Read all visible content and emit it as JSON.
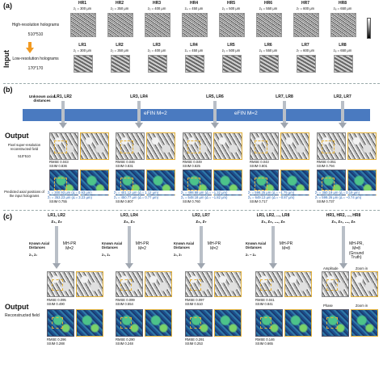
{
  "panel_a": {
    "label": "(a)",
    "side_label": "Input",
    "hr_caption": "High-resolution holograms",
    "hr_size": "510*510",
    "lr_caption": "Low-resolution holograms",
    "lr_size": "170*170",
    "hr": [
      {
        "name": "HR1",
        "z": "z₁ = 300 μm"
      },
      {
        "name": "HR2",
        "z": "z₂ = 350 μm"
      },
      {
        "name": "HR3",
        "z": "z₃ = 400 μm"
      },
      {
        "name": "HR4",
        "z": "z₄ = 450 μm"
      },
      {
        "name": "HR5",
        "z": "z₅ = 500 μm"
      },
      {
        "name": "HR6",
        "z": "z₆ = 550 μm"
      },
      {
        "name": "HR7",
        "z": "z₇ = 600 μm"
      },
      {
        "name": "HR8",
        "z": "z₈ = 650 μm"
      }
    ],
    "lr": [
      {
        "name": "LR1",
        "z": "z₁ = 300 μm"
      },
      {
        "name": "LR2",
        "z": "z₂ = 350 μm"
      },
      {
        "name": "LR3",
        "z": "z₃ = 400 μm"
      },
      {
        "name": "LR4",
        "z": "z₄ = 450 μm"
      },
      {
        "name": "LR5",
        "z": "z₅ = 500 μm"
      },
      {
        "name": "LR6",
        "z": "z₆ = 550 μm"
      },
      {
        "name": "LR7",
        "z": "z₇ = 600 μm"
      },
      {
        "name": "LR8",
        "z": "z₈ = 650 μm"
      }
    ]
  },
  "panel_b": {
    "label": "(b)",
    "unknown_label": "Unknown axial distances",
    "pair_labels": [
      "LR1, LR2",
      "LR3, LR4",
      "LR5, LR6",
      "LR7, LR8",
      "LR2, LR7"
    ],
    "bar_texts": [
      "eFIN M=2",
      "eFIN M=2"
    ],
    "side_output": "Output",
    "side_sr": "Pixel super-resolution reconstructed field",
    "side_sr_size": "510*510",
    "side_pred": "Predicted axial positions of the input holograms",
    "amp_metrics": [
      {
        "rmse": "RMSE 0.043",
        "ssim": "SSIM 0.836"
      },
      {
        "rmse": "RMSE 0.046",
        "ssim": "SSIM 0.831"
      },
      {
        "rmse": "RMSE 0.049",
        "ssim": "SSIM 0.825"
      },
      {
        "rmse": "RMSE 0.043",
        "ssim": "SSIM 0.801"
      },
      {
        "rmse": "RMSE 0.051",
        "ssim": "SSIM 0.794"
      }
    ],
    "phase_metrics": [
      {
        "rmse": "RMSE 0.130",
        "ssim": "SSIM 0.755"
      },
      {
        "rmse": "RMSE 0.134",
        "ssim": "SSIM 0.807"
      },
      {
        "rmse": "RMSE 0.141",
        "ssim": "SSIM 0.760"
      },
      {
        "rmse": "RMSE 0.139",
        "ssim": "SSIM 0.717"
      },
      {
        "rmse": "RMSE 0.137",
        "ssim": "SSIM 0.737"
      }
    ],
    "positions": [
      [
        "ẑ₁ = 300.93 μm (Δ = 0.93 μm)",
        "ẑ₂ = 353.23 μm (Δ = 3.23 μm)"
      ],
      [
        "ẑ₃ = 401.12 μm (Δ = 1.12 μm)",
        "ẑ₄ = 450.77 μm (Δ = 0.77 μm)"
      ],
      [
        "ẑ₅ = 498.68 μm (Δ = −1.32 μm)",
        "ẑ₆ = 548.18 μm (Δ = −1.82 μm)"
      ],
      [
        "ẑ₇ = 598.25 μm (Δ = −1.75 μm)",
        "ẑ₈ = 649.13 μm (Δ = −0.87 μm)"
      ],
      [
        "ẑ₂ = 350.19 μm (Δ = 0.19 μm)",
        "ẑ₇ = 599.26 μm (Δ = −0.74 μm)"
      ]
    ]
  },
  "panel_c": {
    "label": "(c)",
    "side_output": "Output",
    "side_rec": "Reconstructed field",
    "groups": [
      {
        "pair": "LR1, LR2",
        "zs": "z₁, z₂",
        "known": "Known Axial Distances",
        "kz": "z₁, z₂",
        "model": "MH-PR M=2"
      },
      {
        "pair": "LR3, LR4",
        "zs": "z₃, z₄",
        "known": "Known Axial Distances",
        "kz": "z₃, z₄",
        "model": "MH-PR M=2"
      },
      {
        "pair": "LR2, LR7",
        "zs": "z₂, z₇",
        "known": "Known Axial Distances",
        "kz": "z₂, z₇",
        "model": "MH-PR M=2"
      },
      {
        "pair": "LR1, LR2, ..., LR8",
        "zs": "z₁, z₂, ..., z₈",
        "known": "Known Axial Distances",
        "kz": "z₁ ~ z₈",
        "model": "MH-PR M=8"
      },
      {
        "pair": "HR1, HR2, ..., HR8",
        "zs": "z₁, z₂, ..., z₈",
        "known": "",
        "kz": "",
        "model": "MH-PR, M=8 (Ground Truth)"
      }
    ],
    "amp_metrics": [
      {
        "rmse": "RMSE 0.095",
        "ssim": "SSIM 0.490"
      },
      {
        "rmse": "RMSE 0.099",
        "ssim": "SSIM 0.554"
      },
      {
        "rmse": "RMSE 0.097",
        "ssim": "SSIM 0.510"
      },
      {
        "rmse": "RMSE 0.041",
        "ssim": "SSIM 0.841"
      }
    ],
    "phase_metrics": [
      {
        "rmse": "RMSE 0.296",
        "ssim": "SSIM 0.288"
      },
      {
        "rmse": "RMSE 0.290",
        "ssim": "SSIM 0.248"
      },
      {
        "rmse": "RMSE 0.291",
        "ssim": "SSIM 0.253"
      },
      {
        "rmse": "RMSE 0.146",
        "ssim": "SSIM 0.665"
      }
    ],
    "gt_labels": {
      "amplitude": "Amplitude",
      "zoom": "Zoom in",
      "phase": "Phase",
      "zoom2": "Zoom in"
    }
  }
}
